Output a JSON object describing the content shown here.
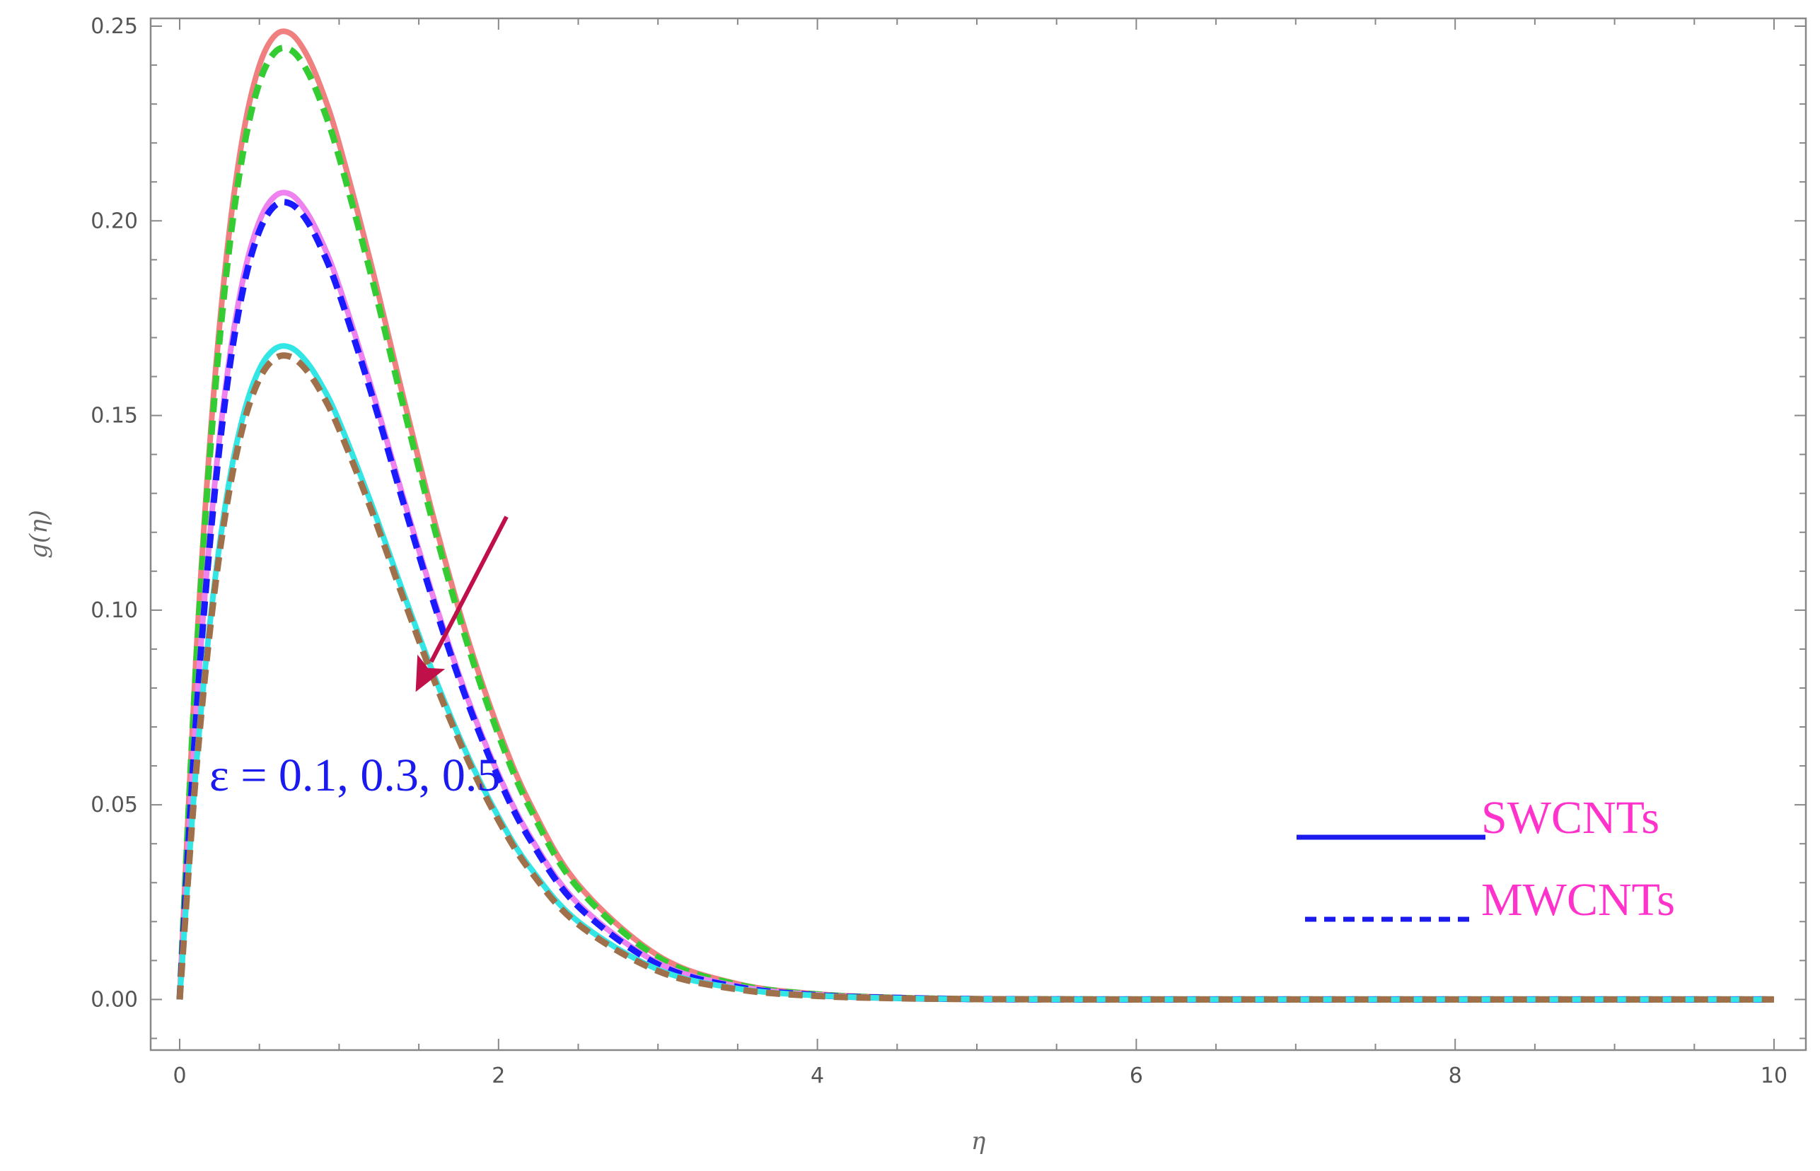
{
  "chart_data": {
    "type": "line",
    "xlabel": "η",
    "ylabel": "g(η)",
    "xlim": [
      0,
      10
    ],
    "ylim": [
      -0.013,
      0.252
    ],
    "xticks": [
      "0",
      "2",
      "4",
      "6",
      "8",
      "10"
    ],
    "yticks": [
      "0.00",
      "0.05",
      "0.10",
      "0.15",
      "0.20",
      "0.25"
    ],
    "grid": false,
    "series": [
      {
        "name": "",
        "group": "SWCNTs",
        "color": "#f08080",
        "dash": "solid",
        "x": [
          0,
          0.1,
          0.2,
          0.3,
          0.4,
          0.5,
          0.6,
          0.7,
          0.8,
          0.9,
          1.0,
          1.2,
          1.4,
          1.6,
          1.8,
          2.0,
          2.2,
          2.5,
          3.0,
          3.5,
          4.0,
          4.5,
          5.0,
          5.5,
          6.0,
          7.0,
          8.0,
          9.0,
          10.0
        ],
        "y": [
          0,
          0.0859,
          0.1487,
          0.1932,
          0.2226,
          0.2399,
          0.2477,
          0.248,
          0.2424,
          0.2327,
          0.2199,
          0.189,
          0.1552,
          0.1226,
          0.0936,
          0.0694,
          0.0501,
          0.0295,
          0.0113,
          0.004,
          0.0014,
          0.0005,
          0.0001,
          4e-05,
          1e-05,
          0,
          0,
          0,
          0
        ]
      },
      {
        "name": "",
        "group": "MWCNTs",
        "color": "#33cc33",
        "dash": "dashed",
        "x": [
          0,
          0.1,
          0.2,
          0.3,
          0.4,
          0.5,
          0.6,
          0.7,
          0.8,
          0.9,
          1.0,
          1.2,
          1.4,
          1.6,
          1.8,
          2.0,
          2.2,
          2.5,
          3.0,
          3.5,
          4.0,
          4.5,
          5.0,
          5.5,
          6.0,
          7.0,
          8.0,
          9.0,
          10.0
        ],
        "y": [
          0,
          0.0837,
          0.1453,
          0.1891,
          0.2182,
          0.2355,
          0.2434,
          0.2438,
          0.2385,
          0.229,
          0.2164,
          0.1862,
          0.1529,
          0.1207,
          0.092,
          0.068,
          0.0489,
          0.0286,
          0.0108,
          0.0038,
          0.0013,
          0.0004,
          0.0001,
          4e-05,
          1e-05,
          0,
          0,
          0,
          0
        ]
      },
      {
        "name": "",
        "group": "SWCNTs",
        "color": "#ee82ee",
        "dash": "solid",
        "x": [
          0,
          0.1,
          0.2,
          0.3,
          0.4,
          0.5,
          0.6,
          0.7,
          0.8,
          0.9,
          1.0,
          1.2,
          1.4,
          1.6,
          1.8,
          2.0,
          2.2,
          2.5,
          3.0,
          3.5,
          4.0,
          4.5,
          5.0,
          5.5,
          6.0,
          7.0,
          8.0,
          9.0,
          10.0
        ],
        "y": [
          0,
          0.0716,
          0.1239,
          0.161,
          0.1855,
          0.1999,
          0.2064,
          0.2067,
          0.202,
          0.1939,
          0.1833,
          0.1575,
          0.1293,
          0.1022,
          0.078,
          0.0578,
          0.0417,
          0.0246,
          0.0094,
          0.0034,
          0.0012,
          0.0004,
          0.0001,
          4e-05,
          1e-05,
          0,
          0,
          0,
          0
        ]
      },
      {
        "name": "",
        "group": "MWCNTs",
        "color": "#1a1aff",
        "dash": "dashed",
        "x": [
          0,
          0.1,
          0.2,
          0.3,
          0.4,
          0.5,
          0.6,
          0.7,
          0.8,
          0.9,
          1.0,
          1.2,
          1.4,
          1.6,
          1.8,
          2.0,
          2.2,
          2.5,
          3.0,
          3.5,
          4.0,
          4.5,
          5.0,
          5.5,
          6.0,
          7.0,
          8.0,
          9.0,
          10.0
        ],
        "y": [
          0,
          0.0702,
          0.1218,
          0.1585,
          0.1829,
          0.1974,
          0.204,
          0.2043,
          0.1999,
          0.1919,
          0.1814,
          0.156,
          0.128,
          0.1011,
          0.077,
          0.0569,
          0.0409,
          0.0239,
          0.009,
          0.0032,
          0.0011,
          0.0004,
          0.0001,
          3e-05,
          1e-05,
          0,
          0,
          0,
          0
        ]
      },
      {
        "name": "",
        "group": "SWCNTs",
        "color": "#33e6e6",
        "dash": "solid",
        "x": [
          0,
          0.1,
          0.2,
          0.3,
          0.4,
          0.5,
          0.6,
          0.7,
          0.8,
          0.9,
          1.0,
          1.2,
          1.4,
          1.6,
          1.8,
          2.0,
          2.2,
          2.5,
          3.0,
          3.5,
          4.0,
          4.5,
          5.0,
          5.5,
          6.0,
          7.0,
          8.0,
          9.0,
          10.0
        ],
        "y": [
          0,
          0.058,
          0.1003,
          0.1304,
          0.1502,
          0.1619,
          0.1672,
          0.1674,
          0.1636,
          0.1571,
          0.1485,
          0.1276,
          0.1048,
          0.0828,
          0.0632,
          0.0469,
          0.0338,
          0.02,
          0.0077,
          0.0028,
          0.001,
          0.0003,
          0.0001,
          3e-05,
          1e-05,
          0,
          0,
          0,
          0
        ]
      },
      {
        "name": "",
        "group": "MWCNTs",
        "color": "#a0704a",
        "dash": "dashed",
        "x": [
          0,
          0.1,
          0.2,
          0.3,
          0.4,
          0.5,
          0.6,
          0.7,
          0.8,
          0.9,
          1.0,
          1.2,
          1.4,
          1.6,
          1.8,
          2.0,
          2.2,
          2.5,
          3.0,
          3.5,
          4.0,
          4.5,
          5.0,
          5.5,
          6.0,
          7.0,
          8.0,
          9.0,
          10.0
        ],
        "y": [
          0,
          0.0568,
          0.0984,
          0.128,
          0.1477,
          0.1594,
          0.1647,
          0.165,
          0.1614,
          0.155,
          0.1465,
          0.126,
          0.1034,
          0.0816,
          0.0622,
          0.046,
          0.033,
          0.0193,
          0.0073,
          0.0026,
          0.0009,
          0.0003,
          0.0001,
          3e-05,
          1e-05,
          0,
          0,
          0,
          0
        ]
      }
    ],
    "annotations": [
      {
        "text": "ε = 0.1, 0.3, 0.5",
        "color": "#1a1aee"
      }
    ],
    "arrow": {
      "from": [
        2.05,
        0.124
      ],
      "to": [
        1.48,
        0.079
      ],
      "color": "#c0104a"
    },
    "legend": {
      "placement": "bottom-right",
      "items": [
        {
          "label": "SWCNTs",
          "dash": "solid",
          "line_color": "#1a1aee",
          "text_color": "#ff33cc"
        },
        {
          "label": "MWCNTs",
          "dash": "dashed",
          "line_color": "#1a1aee",
          "text_color": "#ff33cc"
        }
      ]
    }
  }
}
